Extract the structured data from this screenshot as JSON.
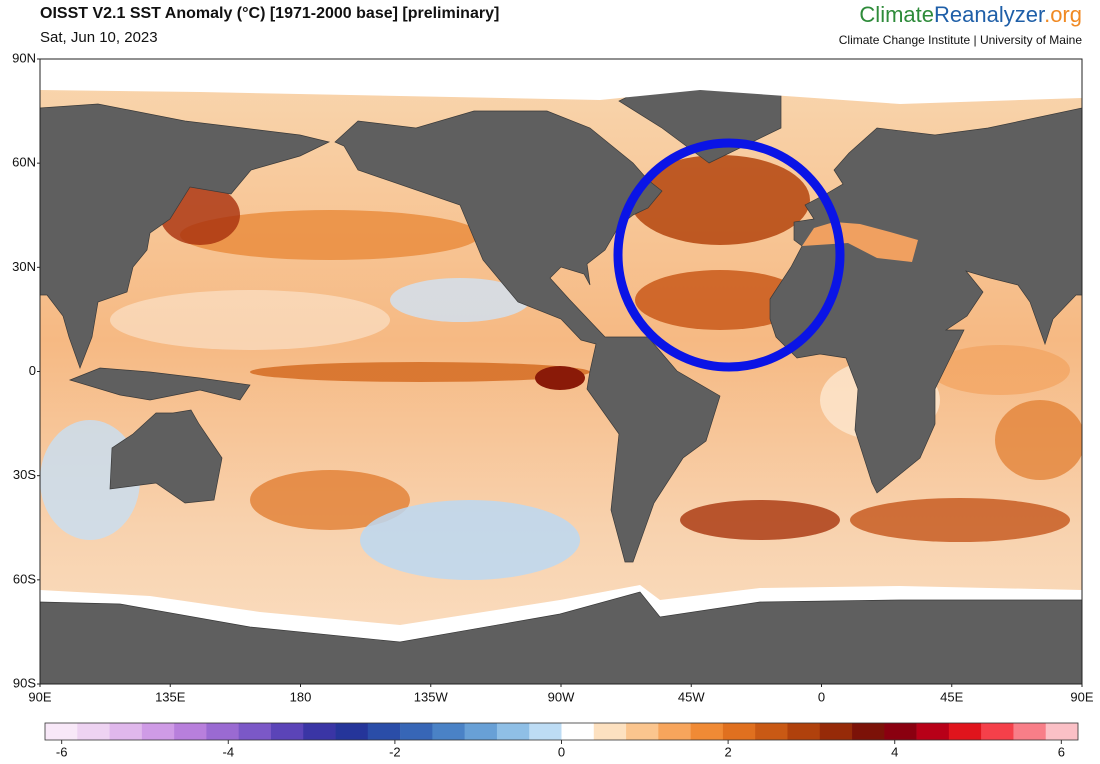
{
  "header": {
    "title": "OISST V2.1 SST Anomaly (°C) [1971-2000 base] [preliminary]",
    "date": "Sat, Jun 10, 2023"
  },
  "logo": {
    "part1": "Climate",
    "part2": "Reanalyzer",
    "part3": ".org",
    "subtitle": "Climate Change Institute | University of Maine"
  },
  "map": {
    "lat_labels": [
      "90N",
      "60N",
      "30N",
      "0",
      "30S",
      "60S",
      "90S"
    ],
    "lon_labels": [
      "90E",
      "135E",
      "180",
      "135W",
      "90W",
      "45W",
      "0",
      "45E",
      "90E"
    ]
  },
  "colorbar": {
    "lim": [
      -6.2,
      6.2
    ],
    "ticks": [
      -6,
      -4,
      -2,
      0,
      2,
      4,
      6
    ],
    "colors": [
      "#f8e8f8",
      "#eed3f2",
      "#e0b8ec",
      "#cf9be6",
      "#b87fdc",
      "#9a6ad2",
      "#7b58c7",
      "#5b44b8",
      "#3a35a5",
      "#25359a",
      "#2a4da8",
      "#3766b6",
      "#4a82c6",
      "#68a0d6",
      "#8fbfe6",
      "#bddcf4",
      "#ffffff",
      "#fde1c0",
      "#fbc58e",
      "#f7a55c",
      "#f08a35",
      "#e0701f",
      "#c95914",
      "#b0410c",
      "#962a08",
      "#7c1208",
      "#8a0010",
      "#b80018",
      "#e0141c",
      "#f5404a",
      "#f87e88",
      "#fbc0c6"
    ]
  }
}
